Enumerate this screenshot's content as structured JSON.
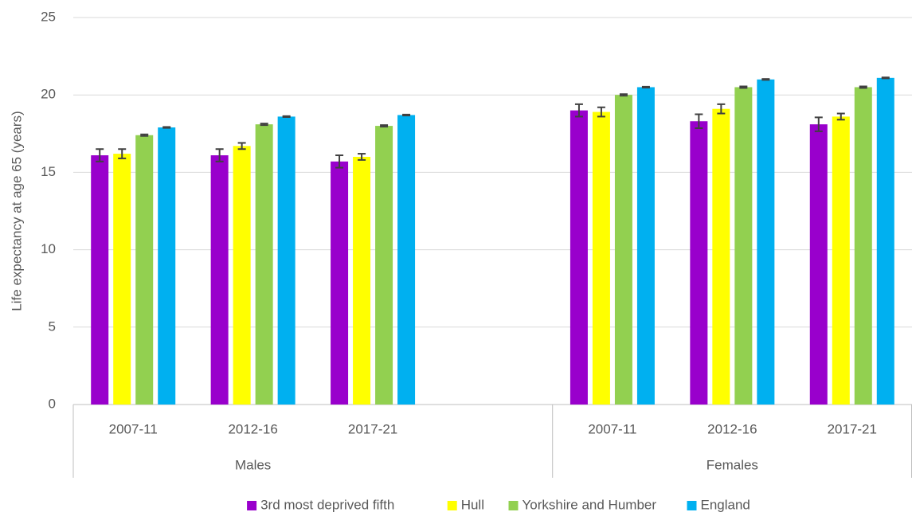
{
  "chart_data": {
    "type": "bar",
    "ylabel": "Life expectancy at age 65 (years)",
    "categories": [
      "2007-11",
      "2012-16",
      "2017-21",
      null,
      "2007-11",
      "2012-16",
      "2017-21"
    ],
    "groups": [
      "Males",
      "Females"
    ],
    "series": [
      {
        "name": "3rd most deprived fifth",
        "color": "#9900cc",
        "values": [
          16.1,
          16.1,
          15.7,
          null,
          19.0,
          18.3,
          18.1
        ],
        "errors": [
          0.4,
          0.4,
          0.4,
          null,
          0.4,
          0.45,
          0.45
        ]
      },
      {
        "name": "Hull",
        "color": "#ffff00",
        "values": [
          16.2,
          16.7,
          16.0,
          null,
          18.9,
          19.1,
          18.6
        ],
        "errors": [
          0.3,
          0.2,
          0.2,
          null,
          0.3,
          0.3,
          0.2
        ]
      },
      {
        "name": "Yorkshire and Humber",
        "color": "#92d050",
        "values": [
          17.4,
          18.1,
          18.0,
          null,
          20.0,
          20.5,
          20.5
        ],
        "errors": [
          0.05,
          0.05,
          0.05,
          null,
          0.05,
          0.05,
          0.05
        ]
      },
      {
        "name": "England",
        "color": "#00b0f0",
        "values": [
          17.9,
          18.6,
          18.7,
          null,
          20.5,
          21.0,
          21.1
        ],
        "errors": [
          0.03,
          0.03,
          0.03,
          null,
          0.03,
          0.03,
          0.03
        ]
      }
    ],
    "ylim": [
      0,
      25
    ],
    "yticks": [
      0,
      5,
      10,
      15,
      20,
      25
    ],
    "grid": true,
    "legend": "bottom"
  }
}
